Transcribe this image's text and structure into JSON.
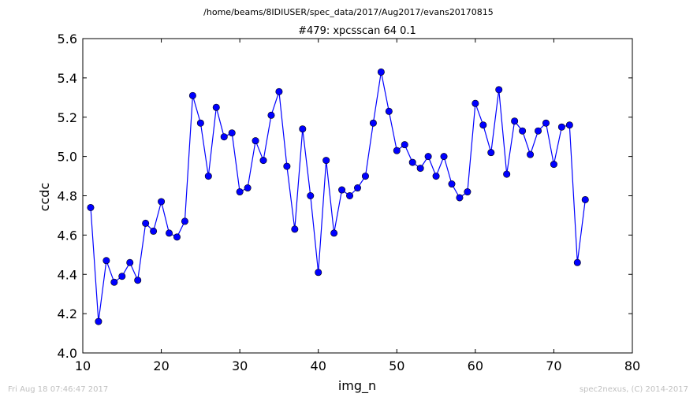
{
  "footer": {
    "timestamp": "Fri Aug 18 07:46:47 2017",
    "credit": "spec2nexus, (C) 2014-2017"
  },
  "colors": {
    "line": "#0000ff",
    "marker": "#0000ff",
    "axes": "#000000"
  },
  "chart_data": {
    "type": "line",
    "suptitle": "/home/beams/8IDIUSER/spec_data/2017/Aug2017/evans20170815",
    "title": "#479: xpcsscan 64 0.1",
    "xlabel": "img_n",
    "ylabel": "ccdc",
    "xlim": [
      10,
      80
    ],
    "ylim": [
      4.0,
      5.6
    ],
    "xticks": [
      "10",
      "20",
      "30",
      "40",
      "50",
      "60",
      "70",
      "80"
    ],
    "yticks": [
      "4.0",
      "4.2",
      "4.4",
      "4.6",
      "4.8",
      "5.0",
      "5.2",
      "5.4",
      "5.6"
    ],
    "grid": false,
    "marker": "circle",
    "series": [
      {
        "x": [
          11,
          12,
          13,
          14,
          15,
          16,
          17,
          18,
          19,
          20,
          21,
          22,
          23,
          24,
          25,
          26,
          27,
          28,
          29,
          30,
          31,
          32,
          33,
          34,
          35,
          36,
          37,
          38,
          39,
          40,
          41,
          42,
          43,
          44,
          45,
          46,
          47,
          48,
          49,
          50,
          51,
          52,
          53,
          54,
          55,
          56,
          57,
          58,
          59,
          60,
          61,
          62,
          63,
          64,
          65,
          66,
          67,
          68,
          69,
          70,
          71,
          72,
          73,
          74
        ],
        "y": [
          4.74,
          4.16,
          4.47,
          4.36,
          4.39,
          4.46,
          4.37,
          4.66,
          4.62,
          4.77,
          4.61,
          4.59,
          4.67,
          5.31,
          5.17,
          4.9,
          5.25,
          5.1,
          5.12,
          4.82,
          4.84,
          5.08,
          4.98,
          5.21,
          5.33,
          4.95,
          4.63,
          5.14,
          4.8,
          4.41,
          4.98,
          4.61,
          4.83,
          4.8,
          4.84,
          4.9,
          5.17,
          5.43,
          5.23,
          5.03,
          5.06,
          4.97,
          4.94,
          5.0,
          4.9,
          5.0,
          4.86,
          4.79,
          4.82,
          5.27,
          5.16,
          5.02,
          5.34,
          4.91,
          5.18,
          5.13,
          5.01,
          5.13,
          5.17,
          4.96,
          5.15,
          5.16,
          4.46,
          4.78
        ]
      }
    ]
  }
}
